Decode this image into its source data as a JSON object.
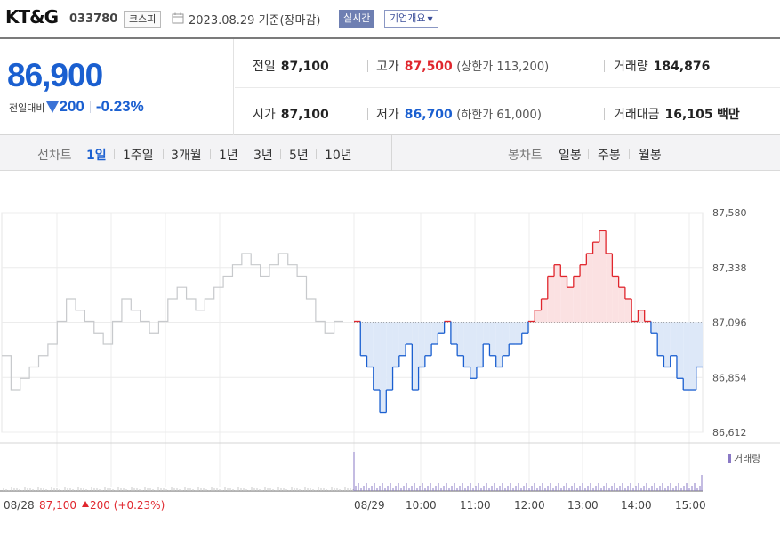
{
  "header": {
    "name": "KT&G",
    "code": "033780",
    "market": "코스피",
    "date_text": "2023.08.29 기준(장마감)",
    "live_button": "실시간",
    "company_button": "기업개요"
  },
  "summary": {
    "price": "86,900",
    "change_label": "전일대비",
    "change_amount": "200",
    "change_rate": "-0.23%",
    "stats": {
      "prev": {
        "label": "전일",
        "value": "87,100"
      },
      "high": {
        "label": "고가",
        "value": "87,500",
        "sub": "(상한가 113,200)"
      },
      "volume": {
        "label": "거래량",
        "value": "184,876"
      },
      "open": {
        "label": "시가",
        "value": "87,100"
      },
      "low": {
        "label": "저가",
        "value": "86,700",
        "sub": "(하한가 61,000)"
      },
      "amount": {
        "label": "거래대금",
        "value": "16,105",
        "unit": "백만"
      }
    }
  },
  "menu": {
    "line_label": "선차트",
    "line_items": [
      "1일",
      "1주일",
      "3개월",
      "1년",
      "3년",
      "5년",
      "10년"
    ],
    "candle_label": "봉차트",
    "candle_items": [
      "일봉",
      "주봉",
      "월봉"
    ]
  },
  "colors": {
    "up": "#e0262d",
    "down": "#1a5fd0",
    "prev": "#c7c9cc"
  },
  "chart_data": {
    "type": "line",
    "y_ticks": [
      "87,580",
      "87,338",
      "87,096",
      "86,854",
      "86,612"
    ],
    "ylim": [
      86612,
      87580
    ],
    "baseline": 87096,
    "volume_legend": "거래량",
    "prev_day_summary": {
      "date": "08/28",
      "close": "87,100",
      "change": "200",
      "rate": "(+0.23%)"
    },
    "x_ticks": [
      "08/28",
      "08/29",
      "10:00",
      "11:00",
      "12:00",
      "13:00",
      "14:00",
      "15:00"
    ],
    "prev_day_series": [
      86950,
      86800,
      86850,
      86900,
      86950,
      87000,
      87100,
      87200,
      87150,
      87100,
      87050,
      87000,
      87100,
      87200,
      87150,
      87100,
      87050,
      87100,
      87200,
      87250,
      87200,
      87150,
      87200,
      87250,
      87300,
      87350,
      87400,
      87350,
      87300,
      87350,
      87400,
      87350,
      87300,
      87200,
      87100,
      87050,
      87100
    ],
    "today_series": [
      87100,
      86950,
      86900,
      86800,
      86700,
      86800,
      86900,
      86950,
      87000,
      86800,
      86900,
      86950,
      87000,
      87050,
      87100,
      87000,
      86950,
      86900,
      86850,
      86900,
      87000,
      86950,
      86900,
      86950,
      87000,
      87000,
      87050,
      87100,
      87150,
      87200,
      87300,
      87350,
      87300,
      87250,
      87300,
      87350,
      87400,
      87450,
      87500,
      87400,
      87300,
      87250,
      87200,
      87100,
      87150,
      87100,
      87050,
      86950,
      86900,
      86950,
      86850,
      86800,
      86800,
      86900
    ]
  }
}
